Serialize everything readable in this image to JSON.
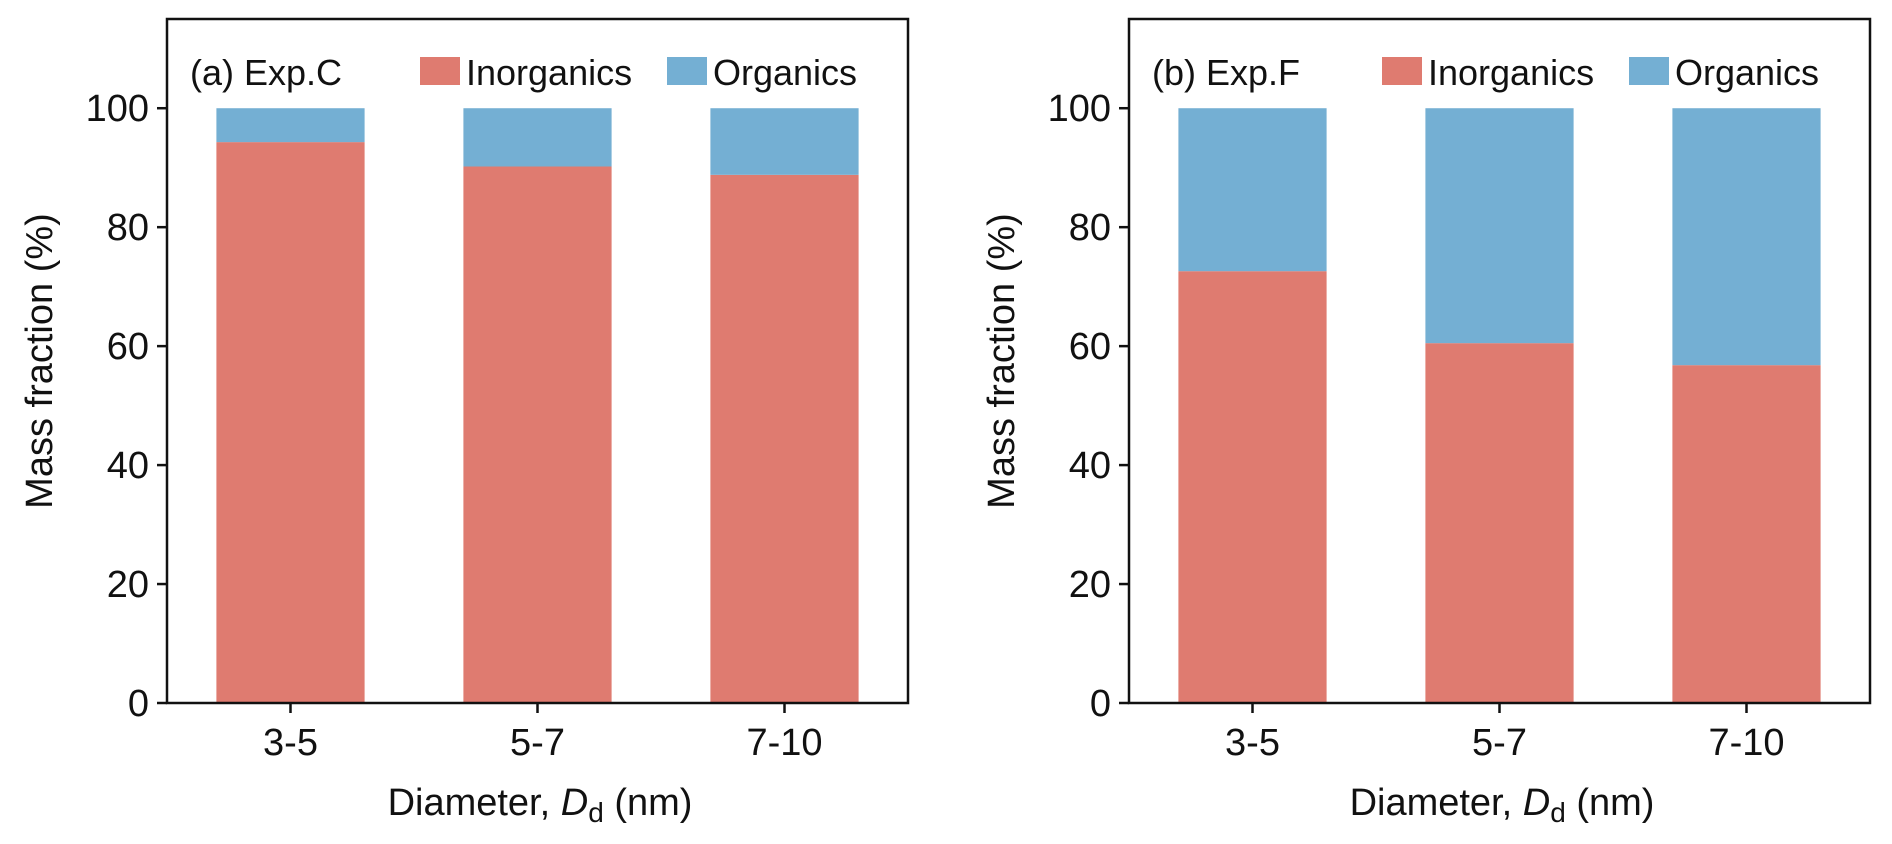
{
  "figure": {
    "colors": {
      "Inorganics": "#df7b70",
      "Organics": "#74afd3"
    }
  },
  "chart_data": [
    {
      "type": "bar",
      "stacked": true,
      "panel_label": "(a) Exp.C",
      "categories": [
        "3-5",
        "5-7",
        "7-10"
      ],
      "series": [
        {
          "name": "Inorganics",
          "values": [
            94.3,
            90.2,
            88.8
          ]
        },
        {
          "name": "Organics",
          "values": [
            5.7,
            9.8,
            11.2
          ]
        }
      ],
      "xlabel_main": "Diameter, ",
      "xlabel_symbol": "D",
      "xlabel_sub": "d",
      "xlabel_unit": " (nm)",
      "ylabel": "Mass fraction (%)",
      "ylim": [
        0,
        115
      ],
      "yticks": [
        0,
        20,
        40,
        60,
        80,
        100
      ],
      "legend": "top-right",
      "grid": false
    },
    {
      "type": "bar",
      "stacked": true,
      "panel_label": "(b) Exp.F",
      "categories": [
        "3-5",
        "5-7",
        "7-10"
      ],
      "series": [
        {
          "name": "Inorganics",
          "values": [
            72.6,
            60.5,
            56.8
          ]
        },
        {
          "name": "Organics",
          "values": [
            27.4,
            39.5,
            43.2
          ]
        }
      ],
      "xlabel_main": "Diameter, ",
      "xlabel_symbol": "D",
      "xlabel_sub": "d",
      "xlabel_unit": " (nm)",
      "ylabel": "Mass fraction (%)",
      "ylim": [
        0,
        115
      ],
      "yticks": [
        0,
        20,
        40,
        60,
        80,
        100
      ],
      "legend": "top-right",
      "grid": false
    }
  ]
}
